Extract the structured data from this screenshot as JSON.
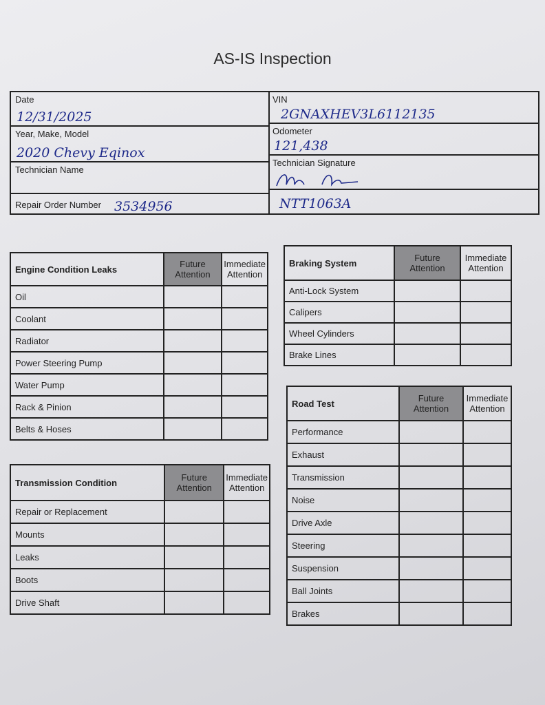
{
  "title": "AS-IS Inspection",
  "info": {
    "date_label": "Date",
    "date_value": "12/31/2025",
    "ymm_label": "Year, Make, Model",
    "ymm_value": "2020 Chevy Eqinox",
    "tech_name_label": "Technician Name",
    "ro_label": "Repair Order Number",
    "ro_value": "3534956",
    "vin_label": "VIN",
    "vin_value": "2GNAXHEV3L6112135",
    "odometer_label": "Odometer",
    "odometer_value": "121,438",
    "tech_sig_label": "Technician Signature",
    "tech_id_value": "NTT1063A"
  },
  "columns": {
    "future": "Future Attention",
    "immediate": "Immediate Attention"
  },
  "tables": {
    "engine": {
      "title": "Engine Condition Leaks",
      "rows": [
        "Oil",
        "Coolant",
        "Radiator",
        "Power Steering Pump",
        "Water Pump",
        "Rack & Pinion",
        "Belts & Hoses"
      ]
    },
    "transmission": {
      "title": "Transmission Condition",
      "rows": [
        "Repair or Replacement",
        "Mounts",
        "Leaks",
        "Boots",
        "Drive Shaft"
      ]
    },
    "braking": {
      "title": "Braking System",
      "rows": [
        "Anti-Lock System",
        "Calipers",
        "Wheel Cylinders",
        "Brake Lines"
      ]
    },
    "road": {
      "title": "Road Test",
      "rows": [
        "Performance",
        "Exhaust",
        "Transmission",
        "Noise",
        "Drive Axle",
        "Steering",
        "Suspension",
        "Ball Joints",
        "Brakes"
      ]
    }
  }
}
